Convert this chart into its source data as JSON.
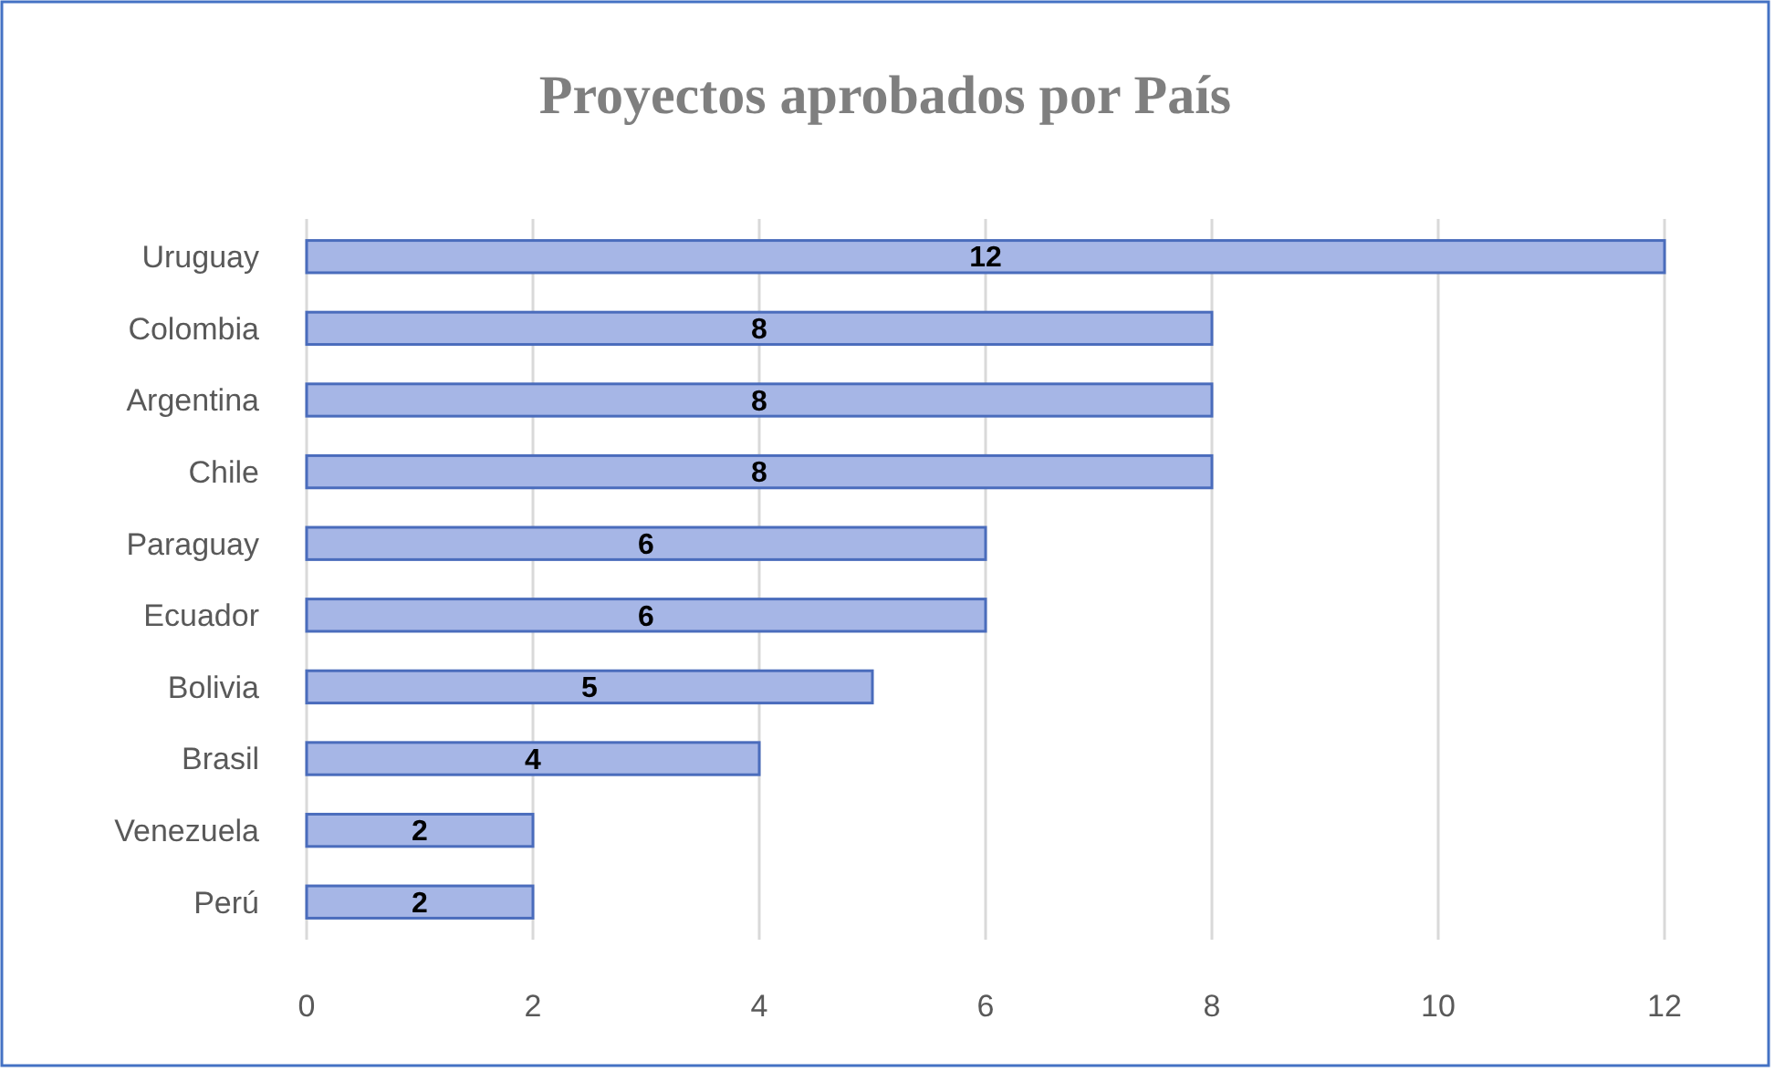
{
  "chart_data": {
    "type": "bar",
    "orientation": "horizontal",
    "title": "Proyectos aprobados por País",
    "categories": [
      "Uruguay",
      "Colombia",
      "Argentina",
      "Chile",
      "Paraguay",
      "Ecuador",
      "Bolivia",
      "Brasil",
      "Venezuela",
      "Perú"
    ],
    "values": [
      12,
      8,
      8,
      8,
      6,
      6,
      5,
      4,
      2,
      2
    ],
    "color": "#a6b6e6",
    "xlim": [
      0,
      12
    ],
    "xticks": [
      0,
      2,
      4,
      6,
      8,
      10,
      12
    ],
    "grid": "x",
    "data_labels": true
  }
}
